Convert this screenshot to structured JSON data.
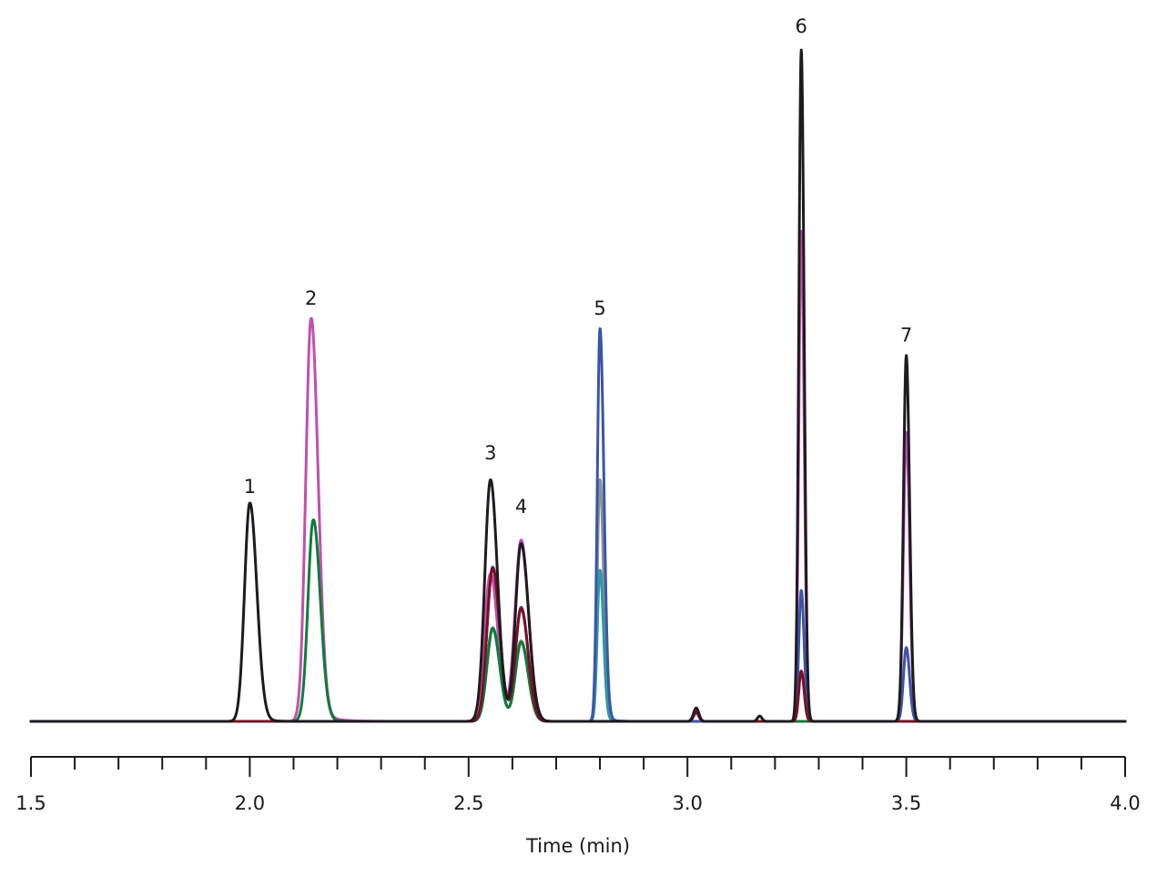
{
  "chart_data": {
    "type": "line",
    "title": "",
    "xlabel": "Time (min)",
    "ylabel": "",
    "xlim": [
      1.5,
      4.0
    ],
    "ylim": [
      0,
      1.0
    ],
    "grid": false,
    "x_ticks_major": [
      1.5,
      2.0,
      2.5,
      3.0,
      3.5,
      4.0
    ],
    "x_tick_labels": [
      "1.5",
      "2.0",
      "2.5",
      "3.0",
      "3.5",
      "4.0"
    ],
    "x_ticks_minor_step": 0.1,
    "peak_labels": [
      {
        "label": "1",
        "time": 2.0,
        "height": 0.335
      },
      {
        "label": "2",
        "time": 2.14,
        "height": 0.615
      },
      {
        "label": "3",
        "time": 2.55,
        "height": 0.385
      },
      {
        "label": "4",
        "time": 2.62,
        "height": 0.305
      },
      {
        "label": "5",
        "time": 2.8,
        "height": 0.6
      },
      {
        "label": "6",
        "time": 3.26,
        "height": 1.02
      },
      {
        "label": "7",
        "time": 3.5,
        "height": 0.56
      }
    ],
    "series": [
      {
        "color": "#c24fae",
        "peaks": [
          {
            "t": 2.14,
            "h": 0.6,
            "sl": 0.012,
            "sr": 0.016,
            "tail": 0.03
          },
          {
            "t": 2.55,
            "h": 0.22,
            "sl": 0.014,
            "sr": 0.017
          },
          {
            "t": 2.62,
            "h": 0.27,
            "sl": 0.014,
            "sr": 0.017
          },
          {
            "t": 3.02,
            "h": 0.012,
            "sl": 0.006,
            "sr": 0.006
          },
          {
            "t": 3.26,
            "h": 0.73,
            "sl": 0.0055,
            "sr": 0.0065
          },
          {
            "t": 3.5,
            "h": 0.43,
            "sl": 0.0065,
            "sr": 0.0075
          }
        ]
      },
      {
        "color": "#8c9097",
        "peaks": [
          {
            "t": 2.555,
            "h": 0.14,
            "sl": 0.013,
            "sr": 0.016
          },
          {
            "t": 2.62,
            "h": 0.12,
            "sl": 0.013,
            "sr": 0.016
          },
          {
            "t": 2.8,
            "h": 0.36,
            "sl": 0.006,
            "sr": 0.008,
            "tail": 0.012
          }
        ]
      },
      {
        "color": "#2e9aa0",
        "peaks": [
          {
            "t": 2.555,
            "h": 0.138,
            "sl": 0.013,
            "sr": 0.016
          },
          {
            "t": 2.62,
            "h": 0.118,
            "sl": 0.013,
            "sr": 0.016
          },
          {
            "t": 2.8,
            "h": 0.225,
            "sl": 0.006,
            "sr": 0.008,
            "tail": 0.012
          }
        ]
      },
      {
        "color": "#0e7c3a",
        "peaks": [
          {
            "t": 2.145,
            "h": 0.3,
            "sl": 0.012,
            "sr": 0.016,
            "tail": 0.018
          },
          {
            "t": 2.555,
            "h": 0.138,
            "sl": 0.013,
            "sr": 0.016
          },
          {
            "t": 2.62,
            "h": 0.118,
            "sl": 0.013,
            "sr": 0.016
          }
        ]
      },
      {
        "color": "#3a55a8",
        "peaks": [
          {
            "t": 2.555,
            "h": 0.23,
            "sl": 0.013,
            "sr": 0.016
          },
          {
            "t": 2.62,
            "h": 0.17,
            "sl": 0.013,
            "sr": 0.016
          },
          {
            "t": 2.8,
            "h": 0.585,
            "sl": 0.006,
            "sr": 0.009,
            "tail": 0.012
          },
          {
            "t": 3.26,
            "h": 0.195,
            "sl": 0.0055,
            "sr": 0.0065
          },
          {
            "t": 3.5,
            "h": 0.11,
            "sl": 0.0065,
            "sr": 0.0075
          }
        ]
      },
      {
        "color": "#7a1020",
        "peaks": [
          {
            "t": 2.555,
            "h": 0.228,
            "sl": 0.013,
            "sr": 0.016
          },
          {
            "t": 2.62,
            "h": 0.168,
            "sl": 0.013,
            "sr": 0.016
          },
          {
            "t": 3.02,
            "h": 0.014,
            "sl": 0.006,
            "sr": 0.006
          },
          {
            "t": 3.26,
            "h": 0.075,
            "sl": 0.0055,
            "sr": 0.0065
          }
        ]
      },
      {
        "color": "#1e1a20",
        "peaks": [
          {
            "t": 2.0,
            "h": 0.325,
            "sl": 0.012,
            "sr": 0.016,
            "tail": 0.02
          },
          {
            "t": 2.55,
            "h": 0.36,
            "sl": 0.013,
            "sr": 0.016
          },
          {
            "t": 2.62,
            "h": 0.265,
            "sl": 0.013,
            "sr": 0.017
          },
          {
            "t": 3.02,
            "h": 0.02,
            "sl": 0.006,
            "sr": 0.006
          },
          {
            "t": 3.165,
            "h": 0.008,
            "sl": 0.005,
            "sr": 0.005
          },
          {
            "t": 3.26,
            "h": 1.0,
            "sl": 0.0055,
            "sr": 0.0065
          },
          {
            "t": 3.5,
            "h": 0.545,
            "sl": 0.0065,
            "sr": 0.0075
          }
        ]
      }
    ]
  }
}
